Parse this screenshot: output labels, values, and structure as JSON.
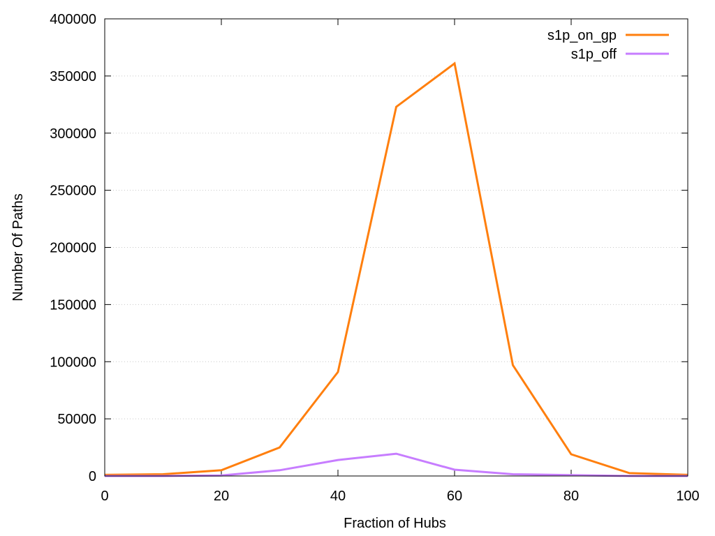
{
  "chart_data": {
    "type": "line",
    "title": "",
    "xlabel": "Fraction of Hubs",
    "ylabel": "Number Of Paths",
    "xlim": [
      0,
      100
    ],
    "ylim": [
      0,
      400000
    ],
    "x_ticks": [
      0,
      20,
      40,
      60,
      80,
      100
    ],
    "y_ticks": [
      0,
      50000,
      100000,
      150000,
      200000,
      250000,
      300000,
      350000,
      400000
    ],
    "grid": "horizontal dotted",
    "legend_position": "top-right",
    "x": [
      0,
      10,
      20,
      30,
      40,
      50,
      60,
      70,
      80,
      90,
      100
    ],
    "series": [
      {
        "name": "s1p_on_gp",
        "color": "#ff7f0e",
        "values": [
          1000,
          1500,
          5000,
          25000,
          91000,
          323000,
          361000,
          97000,
          19000,
          2500,
          1000
        ]
      },
      {
        "name": "s1p_off",
        "color": "#c77dff",
        "values": [
          0,
          0,
          500,
          5000,
          14000,
          19500,
          5500,
          1500,
          800,
          0,
          0
        ]
      }
    ]
  }
}
